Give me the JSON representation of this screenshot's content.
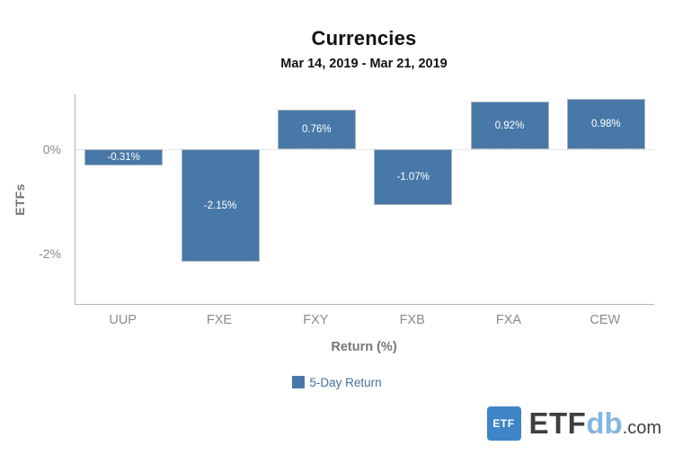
{
  "chart_data": {
    "type": "bar",
    "title": "Currencies",
    "subtitle": "Mar 14, 2019 - Mar 21, 2019",
    "categories": [
      "UUP",
      "FXE",
      "FXY",
      "FXB",
      "FXA",
      "CEW"
    ],
    "series": [
      {
        "name": "5-Day Return",
        "values": [
          -0.31,
          -2.15,
          0.76,
          -1.07,
          0.92,
          0.98
        ]
      }
    ],
    "value_labels": [
      "-0.31%",
      "-2.15%",
      "0.76%",
      "-1.07%",
      "0.92%",
      "0.98%"
    ],
    "xlabel": "Return (%)",
    "ylabel": "ETFs",
    "ylim": [
      -2.96,
      1.06
    ],
    "yticks": [
      {
        "value": 0,
        "label": "0%"
      },
      {
        "value": -2,
        "label": "-2%"
      }
    ],
    "zero_line": true,
    "grid": false,
    "legend_position": "bottom",
    "bar_color": "#4878A8",
    "bar_border_color": "#AAB4BD",
    "legend_text_color": "#41719E"
  },
  "logo": {
    "badge_text": "ETF",
    "brand": "ETF",
    "brand_accent": "db",
    "brand_suffix": ".com",
    "badge_color": "#3D85C6",
    "accent_color": "#85B5E2",
    "text_color": "#3F3F3F"
  }
}
